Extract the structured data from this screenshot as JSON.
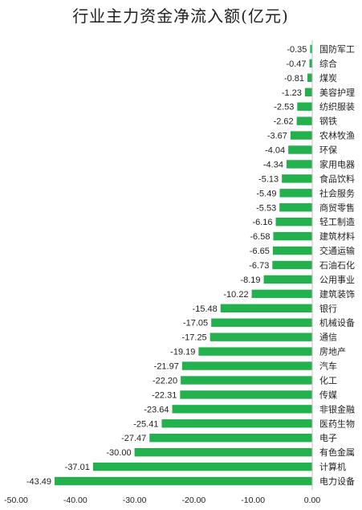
{
  "chart_data": {
    "type": "bar",
    "orientation": "horizontal",
    "title": "行业主力资金净流入额(亿元)",
    "xlabel": "",
    "ylabel": "",
    "xlim": [
      -50,
      0
    ],
    "xticks": [
      "-50.00",
      "-40.00",
      "-30.00",
      "-20.00",
      "-10.00",
      "0.00"
    ],
    "grid": false,
    "legend": "none",
    "bar_color": "#22b14c",
    "categories": [
      "国防军工",
      "综合",
      "煤炭",
      "美容护理",
      "纺织服装",
      "钢铁",
      "农林牧渔",
      "环保",
      "家用电器",
      "食品饮料",
      "社会服务",
      "商贸零售",
      "轻工制造",
      "建筑材料",
      "交通运输",
      "石油石化",
      "公用事业",
      "建筑装饰",
      "银行",
      "机械设备",
      "通信",
      "房地产",
      "汽车",
      "化工",
      "传媒",
      "非银金融",
      "医药生物",
      "电子",
      "有色金属",
      "计算机",
      "电力设备"
    ],
    "values": [
      -0.35,
      -0.47,
      -0.81,
      -1.23,
      -2.53,
      -2.62,
      -3.67,
      -4.04,
      -4.34,
      -5.13,
      -5.49,
      -5.53,
      -6.16,
      -6.58,
      -6.65,
      -6.73,
      -8.19,
      -10.22,
      -15.48,
      -17.05,
      -17.25,
      -19.19,
      -21.97,
      -22.2,
      -22.31,
      -23.64,
      -25.41,
      -27.47,
      -30.0,
      -37.01,
      -43.49
    ],
    "value_labels": [
      "-0.35",
      "-0.47",
      "-0.81",
      "-1.23",
      "-2.53",
      "-2.62",
      "-3.67",
      "-4.04",
      "-4.34",
      "-5.13",
      "-5.49",
      "-5.53",
      "-6.16",
      "-6.58",
      "-6.65",
      "-6.73",
      "-8.19",
      "-10.22",
      "-15.48",
      "-17.05",
      "-17.25",
      "-19.19",
      "-21.97",
      "-22.20",
      "-22.31",
      "-23.64",
      "-25.41",
      "-27.47",
      "-30.00",
      "-37.01",
      "-43.49"
    ]
  }
}
